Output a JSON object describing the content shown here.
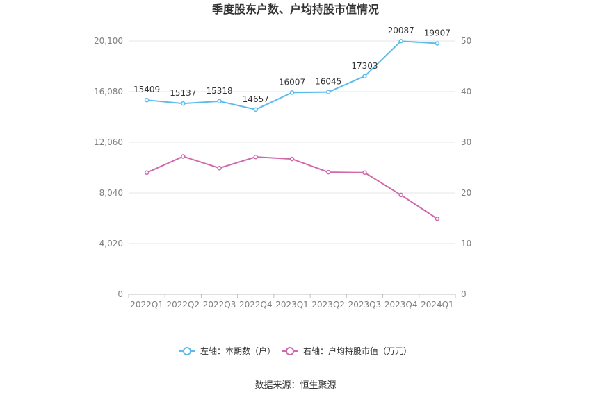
{
  "chart_data": {
    "type": "line",
    "title": "季度股东户数、户均持股市值情况",
    "categories": [
      "2022Q1",
      "2022Q2",
      "2022Q3",
      "2022Q4",
      "2023Q1",
      "2023Q2",
      "2023Q3",
      "2023Q4",
      "2024Q1"
    ],
    "left_axis": {
      "ticks": [
        "0",
        "4,020",
        "8,040",
        "12,060",
        "16,080",
        "20,100"
      ],
      "min": 0,
      "max": 20100
    },
    "right_axis": {
      "ticks": [
        "0",
        "10",
        "20",
        "30",
        "40",
        "50"
      ],
      "min": 0,
      "max": 50
    },
    "series": [
      {
        "name": "左轴：本期数（户）",
        "axis": "left",
        "color": "#5bbcec",
        "values": [
          15409,
          15137,
          15318,
          14657,
          16007,
          16045,
          17303,
          20087,
          19907
        ],
        "labels": [
          "15409",
          "15137",
          "15318",
          "14657",
          "16007",
          "16045",
          "17303",
          "20087",
          "19907"
        ]
      },
      {
        "name": "右轴：户均持股市值（万元）",
        "axis": "right",
        "color": "#d069ac",
        "values": [
          24.0,
          27.2,
          24.9,
          27.1,
          26.7,
          24.1,
          24.0,
          19.6,
          14.9
        ]
      }
    ],
    "grid": true,
    "legend": "bottom-center"
  },
  "source": "数据来源：恒生聚源"
}
